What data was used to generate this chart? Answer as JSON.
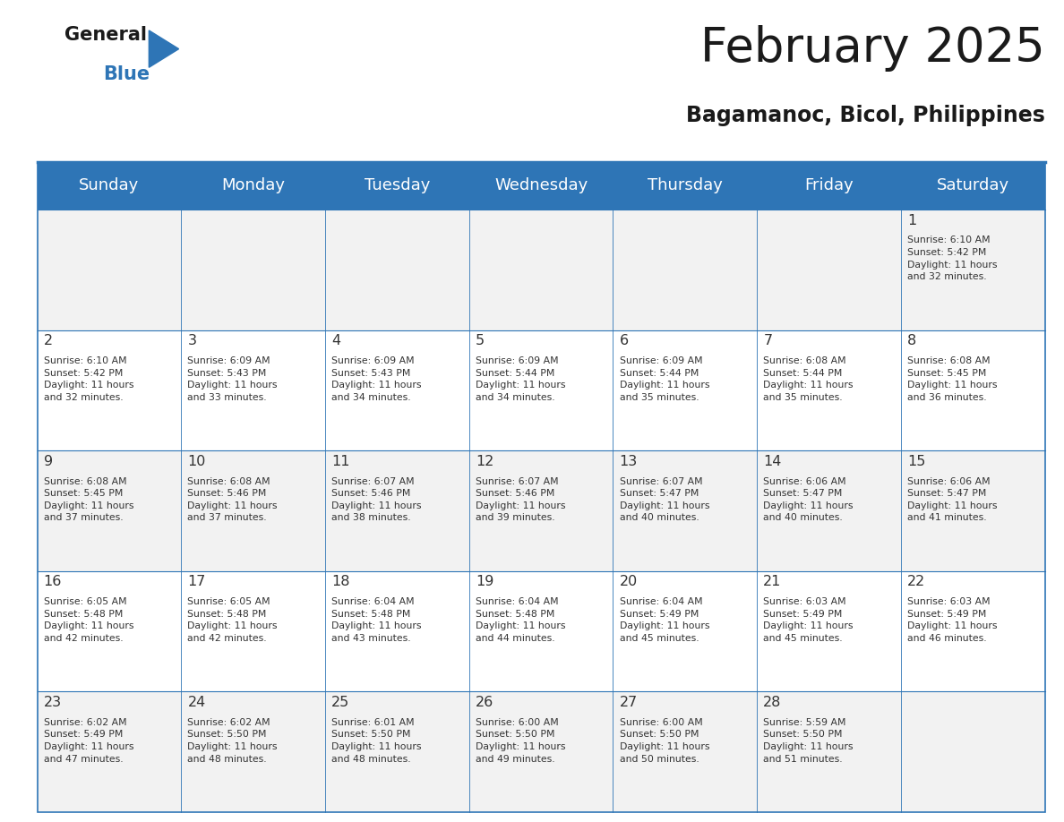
{
  "title": "February 2025",
  "subtitle": "Bagamanoc, Bicol, Philippines",
  "header_bg": "#2E75B6",
  "header_text_color": "#FFFFFF",
  "cell_bg_odd": "#F2F2F2",
  "cell_bg_even": "#FFFFFF",
  "border_color": "#2E75B6",
  "day_headers": [
    "Sunday",
    "Monday",
    "Tuesday",
    "Wednesday",
    "Thursday",
    "Friday",
    "Saturday"
  ],
  "title_color": "#1a1a1a",
  "subtitle_color": "#1a1a1a",
  "days": [
    {
      "day": 1,
      "col": 6,
      "row": 0,
      "sunrise": "6:10 AM",
      "sunset": "5:42 PM",
      "hours": "11 hours",
      "mins": "32 minutes."
    },
    {
      "day": 2,
      "col": 0,
      "row": 1,
      "sunrise": "6:10 AM",
      "sunset": "5:42 PM",
      "hours": "11 hours",
      "mins": "32 minutes."
    },
    {
      "day": 3,
      "col": 1,
      "row": 1,
      "sunrise": "6:09 AM",
      "sunset": "5:43 PM",
      "hours": "11 hours",
      "mins": "33 minutes."
    },
    {
      "day": 4,
      "col": 2,
      "row": 1,
      "sunrise": "6:09 AM",
      "sunset": "5:43 PM",
      "hours": "11 hours",
      "mins": "34 minutes."
    },
    {
      "day": 5,
      "col": 3,
      "row": 1,
      "sunrise": "6:09 AM",
      "sunset": "5:44 PM",
      "hours": "11 hours",
      "mins": "34 minutes."
    },
    {
      "day": 6,
      "col": 4,
      "row": 1,
      "sunrise": "6:09 AM",
      "sunset": "5:44 PM",
      "hours": "11 hours",
      "mins": "35 minutes."
    },
    {
      "day": 7,
      "col": 5,
      "row": 1,
      "sunrise": "6:08 AM",
      "sunset": "5:44 PM",
      "hours": "11 hours",
      "mins": "35 minutes."
    },
    {
      "day": 8,
      "col": 6,
      "row": 1,
      "sunrise": "6:08 AM",
      "sunset": "5:45 PM",
      "hours": "11 hours",
      "mins": "36 minutes."
    },
    {
      "day": 9,
      "col": 0,
      "row": 2,
      "sunrise": "6:08 AM",
      "sunset": "5:45 PM",
      "hours": "11 hours",
      "mins": "37 minutes."
    },
    {
      "day": 10,
      "col": 1,
      "row": 2,
      "sunrise": "6:08 AM",
      "sunset": "5:46 PM",
      "hours": "11 hours",
      "mins": "37 minutes."
    },
    {
      "day": 11,
      "col": 2,
      "row": 2,
      "sunrise": "6:07 AM",
      "sunset": "5:46 PM",
      "hours": "11 hours",
      "mins": "38 minutes."
    },
    {
      "day": 12,
      "col": 3,
      "row": 2,
      "sunrise": "6:07 AM",
      "sunset": "5:46 PM",
      "hours": "11 hours",
      "mins": "39 minutes."
    },
    {
      "day": 13,
      "col": 4,
      "row": 2,
      "sunrise": "6:07 AM",
      "sunset": "5:47 PM",
      "hours": "11 hours",
      "mins": "40 minutes."
    },
    {
      "day": 14,
      "col": 5,
      "row": 2,
      "sunrise": "6:06 AM",
      "sunset": "5:47 PM",
      "hours": "11 hours",
      "mins": "40 minutes."
    },
    {
      "day": 15,
      "col": 6,
      "row": 2,
      "sunrise": "6:06 AM",
      "sunset": "5:47 PM",
      "hours": "11 hours",
      "mins": "41 minutes."
    },
    {
      "day": 16,
      "col": 0,
      "row": 3,
      "sunrise": "6:05 AM",
      "sunset": "5:48 PM",
      "hours": "11 hours",
      "mins": "42 minutes."
    },
    {
      "day": 17,
      "col": 1,
      "row": 3,
      "sunrise": "6:05 AM",
      "sunset": "5:48 PM",
      "hours": "11 hours",
      "mins": "42 minutes."
    },
    {
      "day": 18,
      "col": 2,
      "row": 3,
      "sunrise": "6:04 AM",
      "sunset": "5:48 PM",
      "hours": "11 hours",
      "mins": "43 minutes."
    },
    {
      "day": 19,
      "col": 3,
      "row": 3,
      "sunrise": "6:04 AM",
      "sunset": "5:48 PM",
      "hours": "11 hours",
      "mins": "44 minutes."
    },
    {
      "day": 20,
      "col": 4,
      "row": 3,
      "sunrise": "6:04 AM",
      "sunset": "5:49 PM",
      "hours": "11 hours",
      "mins": "45 minutes."
    },
    {
      "day": 21,
      "col": 5,
      "row": 3,
      "sunrise": "6:03 AM",
      "sunset": "5:49 PM",
      "hours": "11 hours",
      "mins": "45 minutes."
    },
    {
      "day": 22,
      "col": 6,
      "row": 3,
      "sunrise": "6:03 AM",
      "sunset": "5:49 PM",
      "hours": "11 hours",
      "mins": "46 minutes."
    },
    {
      "day": 23,
      "col": 0,
      "row": 4,
      "sunrise": "6:02 AM",
      "sunset": "5:49 PM",
      "hours": "11 hours",
      "mins": "47 minutes."
    },
    {
      "day": 24,
      "col": 1,
      "row": 4,
      "sunrise": "6:02 AM",
      "sunset": "5:50 PM",
      "hours": "11 hours",
      "mins": "48 minutes."
    },
    {
      "day": 25,
      "col": 2,
      "row": 4,
      "sunrise": "6:01 AM",
      "sunset": "5:50 PM",
      "hours": "11 hours",
      "mins": "48 minutes."
    },
    {
      "day": 26,
      "col": 3,
      "row": 4,
      "sunrise": "6:00 AM",
      "sunset": "5:50 PM",
      "hours": "11 hours",
      "mins": "49 minutes."
    },
    {
      "day": 27,
      "col": 4,
      "row": 4,
      "sunrise": "6:00 AM",
      "sunset": "5:50 PM",
      "hours": "11 hours",
      "mins": "50 minutes."
    },
    {
      "day": 28,
      "col": 5,
      "row": 4,
      "sunrise": "5:59 AM",
      "sunset": "5:50 PM",
      "hours": "11 hours",
      "mins": "51 minutes."
    }
  ],
  "num_rows": 5
}
